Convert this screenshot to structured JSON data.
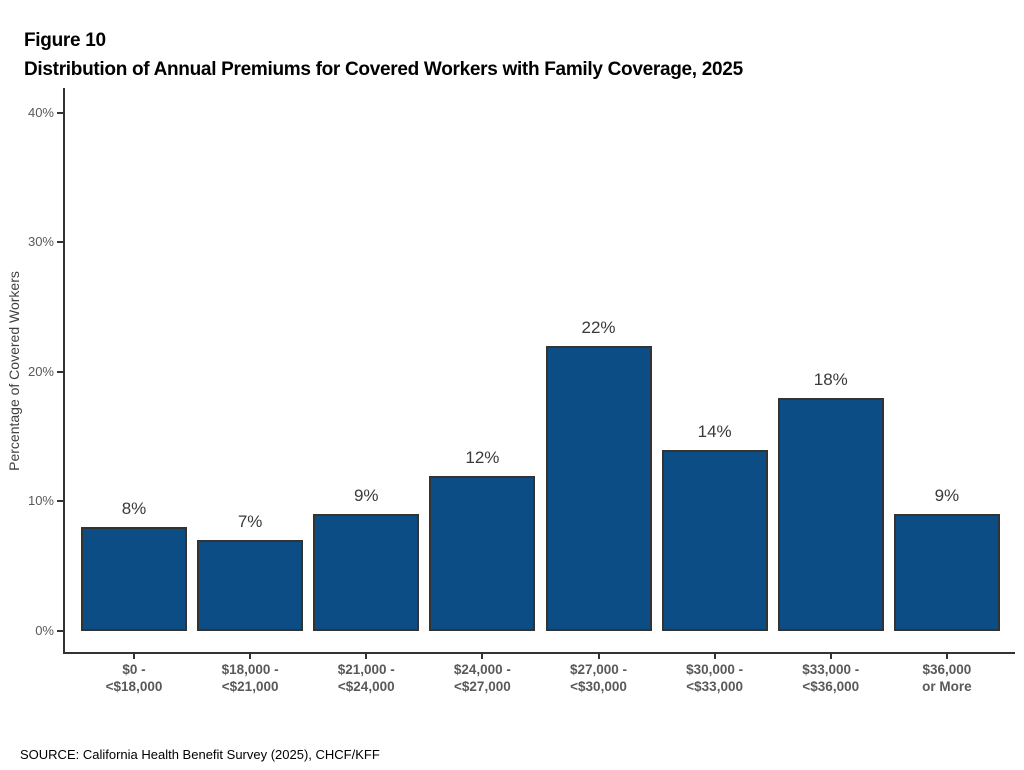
{
  "figure": {
    "label": "Figure 10",
    "title": "Distribution of Annual Premiums for Covered Workers with Family Coverage, 2025"
  },
  "chart_data": {
    "type": "bar",
    "title": "Distribution of Annual Premiums for Covered Workers with Family Coverage, 2025",
    "categories": [
      "$0 - <$18,000",
      "$18,000 - <$21,000",
      "$21,000 - <$24,000",
      "$24,000 - <$27,000",
      "$27,000 - <$30,000",
      "$30,000 - <$33,000",
      "$33,000 - <$36,000",
      "$36,000 or More"
    ],
    "categories_two_line": [
      [
        "$0 -",
        "<$18,000"
      ],
      [
        "$18,000 -",
        "<$21,000"
      ],
      [
        "$21,000 -",
        "<$24,000"
      ],
      [
        "$24,000 -",
        "<$27,000"
      ],
      [
        "$27,000 -",
        "<$30,000"
      ],
      [
        "$30,000 -",
        "<$33,000"
      ],
      [
        "$33,000 -",
        "<$36,000"
      ],
      [
        "$36,000",
        "or More"
      ]
    ],
    "values": [
      8,
      7,
      9,
      12,
      22,
      14,
      18,
      9
    ],
    "value_labels": [
      "8%",
      "7%",
      "9%",
      "12%",
      "22%",
      "14%",
      "18%",
      "9%"
    ],
    "xlabel": "",
    "ylabel": "Percentage of Covered Workers",
    "ylim": [
      0,
      40
    ],
    "y_ticks": [
      0,
      10,
      20,
      30,
      40
    ],
    "y_tick_labels": [
      "0%",
      "10%",
      "20%",
      "30%",
      "40%"
    ],
    "grid": false,
    "legend": "none",
    "bar_color": "#0d4d85",
    "bar_border_color": "#333333",
    "axis_color": "#333333"
  },
  "source": {
    "text": "SOURCE: California Health Benefit Survey (2025), CHCF/KFF"
  }
}
